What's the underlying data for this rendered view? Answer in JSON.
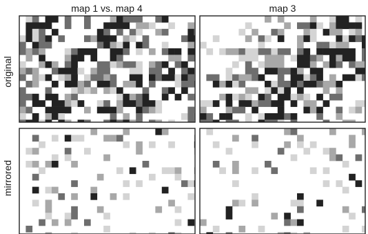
{
  "column_titles": [
    "map 1 vs. map 4",
    "map 3"
  ],
  "row_titles": [
    "original",
    "mirrored"
  ],
  "palette": {
    "background": "#ffffff",
    "frame": "#222222",
    "shades": [
      "#ffffff",
      "#d4d4d4",
      "#a8a8a8",
      "#6e6e6e",
      "#222222"
    ]
  }
}
